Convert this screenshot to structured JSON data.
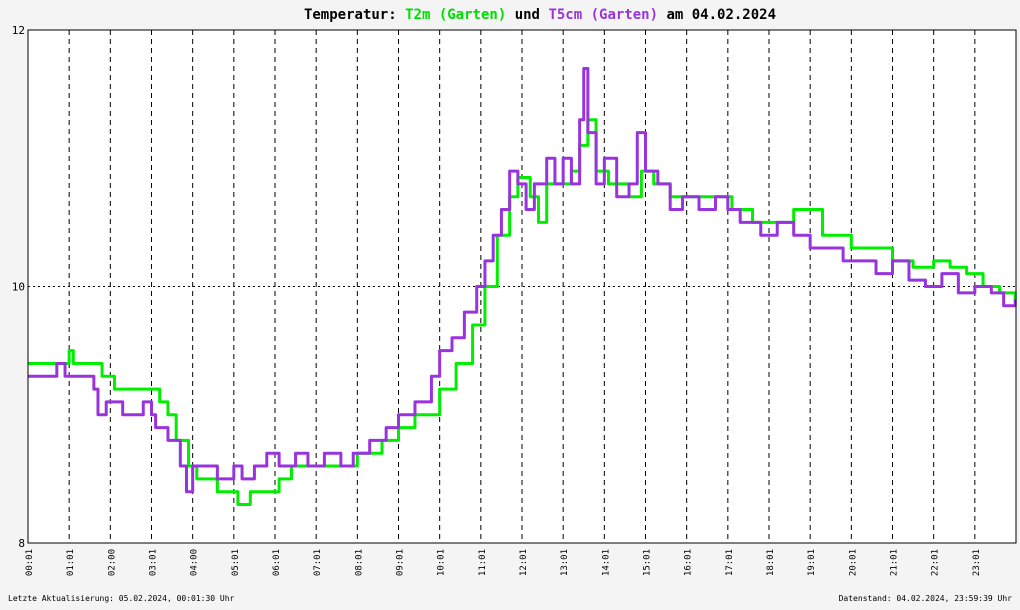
{
  "chart_data": {
    "type": "line",
    "title": {
      "prefix": "Temperatur:",
      "series1": "T2m (Garten)",
      "mid": "und",
      "series2": "T5cm (Garten)",
      "suffix": "am 04.02.2024"
    },
    "y_ticks": [
      "8",
      "10",
      "12"
    ],
    "ylim": [
      8,
      12
    ],
    "x_ticks": [
      "00:01",
      "01:01",
      "02:00",
      "03:01",
      "04:00",
      "05:01",
      "06:01",
      "07:01",
      "08:01",
      "09:01",
      "10:01",
      "11:01",
      "12:01",
      "13:01",
      "14:01",
      "15:01",
      "16:01",
      "17:01",
      "18:01",
      "19:01",
      "20:01",
      "21:01",
      "22:01",
      "23:01"
    ],
    "grid": true,
    "colors": {
      "T2m": "#00ee00",
      "T5cm": "#9933dd",
      "grid": "#000000"
    },
    "series": [
      {
        "name": "T2m (Garten)",
        "color": "#00ee00",
        "points": [
          [
            0,
            9.4
          ],
          [
            0.9,
            9.4
          ],
          [
            1.0,
            9.5
          ],
          [
            1.1,
            9.4
          ],
          [
            1.6,
            9.4
          ],
          [
            1.8,
            9.3
          ],
          [
            2.1,
            9.2
          ],
          [
            3.0,
            9.2
          ],
          [
            3.2,
            9.1
          ],
          [
            3.4,
            9.0
          ],
          [
            3.6,
            8.8
          ],
          [
            3.9,
            8.6
          ],
          [
            4.1,
            8.5
          ],
          [
            4.5,
            8.5
          ],
          [
            4.6,
            8.4
          ],
          [
            5.1,
            8.3
          ],
          [
            5.4,
            8.4
          ],
          [
            6.1,
            8.5
          ],
          [
            6.4,
            8.6
          ],
          [
            7.0,
            8.6
          ],
          [
            7.5,
            8.6
          ],
          [
            8.0,
            8.7
          ],
          [
            8.6,
            8.8
          ],
          [
            9.0,
            8.9
          ],
          [
            9.4,
            9.0
          ],
          [
            10.0,
            9.2
          ],
          [
            10.4,
            9.4
          ],
          [
            10.8,
            9.7
          ],
          [
            11.1,
            10.0
          ],
          [
            11.4,
            10.4
          ],
          [
            11.7,
            10.7
          ],
          [
            11.9,
            10.85
          ],
          [
            12.2,
            10.7
          ],
          [
            12.4,
            10.5
          ],
          [
            12.6,
            10.8
          ],
          [
            12.9,
            10.8
          ],
          [
            13.2,
            10.9
          ],
          [
            13.4,
            11.1
          ],
          [
            13.6,
            11.3
          ],
          [
            13.8,
            10.9
          ],
          [
            14.1,
            10.8
          ],
          [
            14.6,
            10.7
          ],
          [
            14.9,
            10.9
          ],
          [
            15.2,
            10.8
          ],
          [
            15.6,
            10.7
          ],
          [
            16.2,
            10.7
          ],
          [
            16.6,
            10.7
          ],
          [
            17.1,
            10.6
          ],
          [
            17.6,
            10.5
          ],
          [
            18.2,
            10.5
          ],
          [
            18.6,
            10.6
          ],
          [
            19.0,
            10.6
          ],
          [
            19.3,
            10.4
          ],
          [
            19.7,
            10.4
          ],
          [
            20.0,
            10.3
          ],
          [
            20.6,
            10.3
          ],
          [
            21.0,
            10.2
          ],
          [
            21.5,
            10.15
          ],
          [
            22.0,
            10.2
          ],
          [
            22.4,
            10.15
          ],
          [
            22.8,
            10.1
          ],
          [
            23.2,
            10.0
          ],
          [
            23.6,
            9.95
          ],
          [
            23.98,
            9.9
          ]
        ]
      },
      {
        "name": "T5cm (Garten)",
        "color": "#9933dd",
        "points": [
          [
            0,
            9.3
          ],
          [
            0.5,
            9.3
          ],
          [
            0.7,
            9.4
          ],
          [
            0.9,
            9.3
          ],
          [
            1.3,
            9.3
          ],
          [
            1.6,
            9.2
          ],
          [
            1.7,
            9.0
          ],
          [
            1.9,
            9.1
          ],
          [
            2.3,
            9.0
          ],
          [
            2.8,
            9.1
          ],
          [
            3.0,
            9.0
          ],
          [
            3.1,
            8.9
          ],
          [
            3.4,
            8.8
          ],
          [
            3.7,
            8.6
          ],
          [
            3.85,
            8.4
          ],
          [
            4.0,
            8.6
          ],
          [
            4.4,
            8.6
          ],
          [
            4.6,
            8.5
          ],
          [
            5.0,
            8.6
          ],
          [
            5.2,
            8.5
          ],
          [
            5.5,
            8.6
          ],
          [
            5.8,
            8.7
          ],
          [
            6.1,
            8.6
          ],
          [
            6.5,
            8.7
          ],
          [
            6.8,
            8.6
          ],
          [
            7.2,
            8.7
          ],
          [
            7.6,
            8.6
          ],
          [
            7.9,
            8.7
          ],
          [
            8.3,
            8.8
          ],
          [
            8.7,
            8.9
          ],
          [
            9.0,
            9.0
          ],
          [
            9.4,
            9.1
          ],
          [
            9.8,
            9.3
          ],
          [
            10.0,
            9.5
          ],
          [
            10.3,
            9.6
          ],
          [
            10.6,
            9.8
          ],
          [
            10.9,
            10.0
          ],
          [
            11.1,
            10.2
          ],
          [
            11.3,
            10.4
          ],
          [
            11.5,
            10.6
          ],
          [
            11.7,
            10.9
          ],
          [
            11.9,
            10.8
          ],
          [
            12.1,
            10.6
          ],
          [
            12.3,
            10.8
          ],
          [
            12.6,
            11.0
          ],
          [
            12.8,
            10.8
          ],
          [
            13.0,
            11.0
          ],
          [
            13.2,
            10.8
          ],
          [
            13.4,
            11.3
          ],
          [
            13.5,
            11.7
          ],
          [
            13.6,
            11.2
          ],
          [
            13.8,
            10.8
          ],
          [
            14.0,
            11.0
          ],
          [
            14.3,
            10.7
          ],
          [
            14.6,
            10.8
          ],
          [
            14.8,
            11.2
          ],
          [
            15.0,
            10.9
          ],
          [
            15.3,
            10.8
          ],
          [
            15.6,
            10.6
          ],
          [
            15.9,
            10.7
          ],
          [
            16.3,
            10.6
          ],
          [
            16.7,
            10.7
          ],
          [
            17.0,
            10.6
          ],
          [
            17.3,
            10.5
          ],
          [
            17.8,
            10.4
          ],
          [
            18.2,
            10.5
          ],
          [
            18.6,
            10.4
          ],
          [
            19.0,
            10.3
          ],
          [
            19.4,
            10.3
          ],
          [
            19.8,
            10.2
          ],
          [
            20.2,
            10.2
          ],
          [
            20.6,
            10.1
          ],
          [
            21.0,
            10.2
          ],
          [
            21.4,
            10.05
          ],
          [
            21.8,
            10.0
          ],
          [
            22.2,
            10.1
          ],
          [
            22.6,
            9.95
          ],
          [
            23.0,
            10.0
          ],
          [
            23.4,
            9.95
          ],
          [
            23.7,
            9.85
          ],
          [
            23.98,
            9.9
          ]
        ]
      }
    ]
  },
  "footer": {
    "left": "Letzte Aktualisierung: 05.02.2024, 00:01:30 Uhr",
    "right": "Datenstand: 04.02.2024, 23:59:39 Uhr"
  }
}
